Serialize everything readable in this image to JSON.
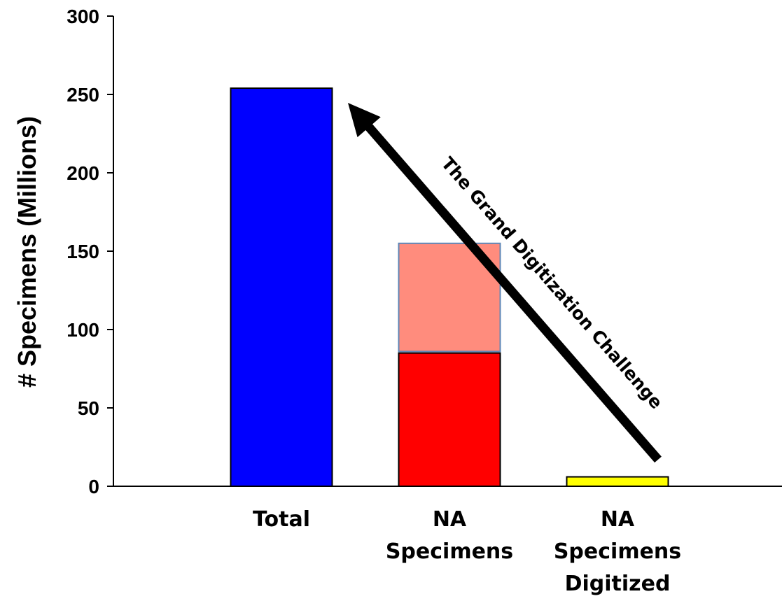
{
  "chart_data": {
    "type": "bar",
    "title": "",
    "xlabel": "",
    "ylabel": "# Specimens (Millions)",
    "ylim": [
      0,
      300
    ],
    "yticks": [
      0,
      50,
      100,
      150,
      200,
      250,
      300
    ],
    "grid": false,
    "categories": [
      [
        "Total"
      ],
      [
        "NA",
        "Specimens"
      ],
      [
        "NA",
        "Specimens",
        "Digitized"
      ]
    ],
    "bars": [
      {
        "category_index": 0,
        "base": 0,
        "value": 254,
        "color": "#0000ff",
        "stroke": "#000000"
      },
      {
        "category_index": 1,
        "base": 0,
        "value": 85,
        "color": "#ff0000",
        "stroke": "#000000"
      },
      {
        "category_index": 1,
        "base": 86,
        "value": 155,
        "color": "#ff8c7d",
        "stroke": "#5f87b7"
      },
      {
        "category_index": 2,
        "base": 0,
        "value": 6,
        "color": "#ffff00",
        "stroke": "#000000"
      }
    ],
    "annotation": {
      "text": "The Grand Digitization Challenge",
      "arrow_from": {
        "category_index": 2,
        "value": 17
      },
      "arrow_to": {
        "category_index": 0,
        "value": 250
      }
    }
  }
}
